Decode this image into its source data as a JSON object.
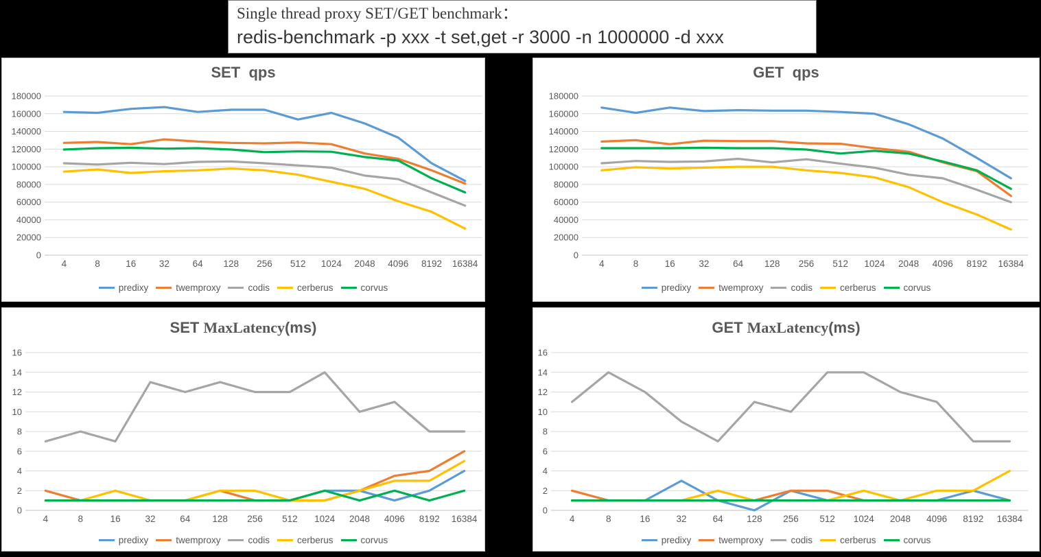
{
  "header": {
    "line1": "Single thread proxy SET/GET benchmark：",
    "line2": "redis-benchmark -p xxx -t set,get -r 3000 -n 1000000 -d xxx"
  },
  "palette": {
    "predixy": "#5B9BD5",
    "twemproxy": "#ED7D31",
    "codis": "#A5A5A5",
    "cerberus": "#FFC000",
    "corvus": "#00B050"
  },
  "style_colors": {
    "axis_text": "#595959",
    "title_text": "#595959",
    "gridline": "#D9D9D9",
    "zero_line": "#BFBFBF",
    "panel_bg": "#FFFFFF",
    "page_bg": "#000000"
  },
  "legend_entries": [
    "predixy",
    "twemproxy",
    "codis",
    "cerberus",
    "corvus"
  ],
  "chart_data": [
    {
      "id": "set-qps",
      "type": "line",
      "title_parts": [
        {
          "text": "SET  qps",
          "serif": false
        }
      ],
      "categories": [
        "4",
        "8",
        "16",
        "32",
        "64",
        "128",
        "256",
        "512",
        "1024",
        "2048",
        "4096",
        "8192",
        "16384"
      ],
      "ylim": [
        0,
        180000
      ],
      "yticks": [
        0,
        20000,
        40000,
        60000,
        80000,
        100000,
        120000,
        140000,
        160000,
        180000
      ],
      "grid": true,
      "legend_position": "bottom",
      "series": [
        {
          "name": "predixy",
          "values": [
            162000,
            161000,
            165500,
            167500,
            162000,
            164500,
            164500,
            153500,
            161000,
            149000,
            133000,
            104000,
            84000
          ]
        },
        {
          "name": "twemproxy",
          "values": [
            127000,
            128000,
            125500,
            131000,
            128500,
            127000,
            126500,
            127500,
            125500,
            115000,
            109000,
            96000,
            81000
          ]
        },
        {
          "name": "codis",
          "values": [
            104000,
            102500,
            104500,
            103000,
            105500,
            106000,
            104000,
            101500,
            99000,
            90000,
            86000,
            71000,
            56000
          ]
        },
        {
          "name": "cerberus",
          "values": [
            94500,
            97000,
            93000,
            95000,
            96000,
            98000,
            96000,
            91000,
            83000,
            75000,
            61000,
            49000,
            30000
          ]
        },
        {
          "name": "corvus",
          "values": [
            119500,
            121000,
            121500,
            120500,
            121000,
            119500,
            116500,
            117500,
            117000,
            111000,
            107000,
            87000,
            71000
          ]
        }
      ]
    },
    {
      "id": "get-qps",
      "type": "line",
      "title_parts": [
        {
          "text": "GET  qps",
          "serif": false
        }
      ],
      "categories": [
        "4",
        "8",
        "16",
        "32",
        "64",
        "128",
        "256",
        "512",
        "1024",
        "2048",
        "4096",
        "8192",
        "16384"
      ],
      "ylim": [
        0,
        180000
      ],
      "yticks": [
        0,
        20000,
        40000,
        60000,
        80000,
        100000,
        120000,
        140000,
        160000,
        180000
      ],
      "grid": true,
      "legend_position": "bottom",
      "series": [
        {
          "name": "predixy",
          "values": [
            167000,
            161000,
            167000,
            163000,
            164000,
            163500,
            163500,
            162000,
            160000,
            148000,
            132000,
            110000,
            87000
          ]
        },
        {
          "name": "twemproxy",
          "values": [
            128500,
            130000,
            125500,
            129500,
            129000,
            129000,
            126500,
            126000,
            121000,
            117000,
            105000,
            95000,
            67000
          ]
        },
        {
          "name": "codis",
          "values": [
            104000,
            106500,
            105500,
            106000,
            109000,
            105000,
            108500,
            103500,
            99000,
            91000,
            87000,
            74000,
            60000
          ]
        },
        {
          "name": "cerberus",
          "values": [
            96000,
            99500,
            98000,
            99000,
            100000,
            100000,
            96000,
            93000,
            88000,
            77000,
            60000,
            46000,
            29000
          ]
        },
        {
          "name": "corvus",
          "values": [
            121000,
            121000,
            121000,
            121500,
            121000,
            121000,
            119500,
            115000,
            118000,
            115000,
            106000,
            96000,
            75000
          ]
        }
      ]
    },
    {
      "id": "set-maxlatency",
      "type": "line",
      "title_parts": [
        {
          "text": "SET ",
          "serif": false
        },
        {
          "text": "MaxLatency",
          "serif": true
        },
        {
          "text": "(ms)",
          "serif": false
        }
      ],
      "categories": [
        "4",
        "8",
        "16",
        "32",
        "64",
        "128",
        "256",
        "512",
        "1024",
        "2048",
        "4096",
        "8192",
        "16384"
      ],
      "ylim": [
        0,
        16
      ],
      "yticks": [
        0,
        2,
        4,
        6,
        8,
        10,
        12,
        14,
        16
      ],
      "grid": true,
      "legend_position": "bottom",
      "series": [
        {
          "name": "predixy",
          "values": [
            1,
            1,
            1,
            1,
            1,
            1,
            1,
            1,
            2,
            2,
            1,
            2,
            4
          ]
        },
        {
          "name": "twemproxy",
          "values": [
            2,
            1,
            1,
            1,
            1,
            2,
            1,
            1,
            1,
            2,
            3.5,
            4,
            6
          ]
        },
        {
          "name": "codis",
          "values": [
            7,
            8,
            7,
            13,
            12,
            13,
            12,
            12,
            14,
            10,
            11,
            8,
            8
          ]
        },
        {
          "name": "cerberus",
          "values": [
            1,
            1,
            2,
            1,
            1,
            2,
            2,
            1,
            1,
            2,
            3,
            3,
            5
          ]
        },
        {
          "name": "corvus",
          "values": [
            1,
            1,
            1,
            1,
            1,
            1,
            1,
            1,
            2,
            1,
            2,
            1,
            2
          ]
        }
      ]
    },
    {
      "id": "get-maxlatency",
      "type": "line",
      "title_parts": [
        {
          "text": "GET ",
          "serif": false
        },
        {
          "text": "MaxLatency",
          "serif": true
        },
        {
          "text": "(ms)",
          "serif": false
        }
      ],
      "categories": [
        "4",
        "8",
        "16",
        "32",
        "64",
        "128",
        "256",
        "512",
        "1024",
        "2048",
        "4096",
        "8192",
        "16384"
      ],
      "ylim": [
        0,
        16
      ],
      "yticks": [
        0,
        2,
        4,
        6,
        8,
        10,
        12,
        14,
        16
      ],
      "grid": true,
      "legend_position": "bottom",
      "series": [
        {
          "name": "predixy",
          "values": [
            1,
            1,
            1,
            3,
            1,
            0,
            2,
            1,
            1,
            1,
            1,
            2,
            1
          ]
        },
        {
          "name": "twemproxy",
          "values": [
            2,
            1,
            1,
            1,
            1,
            1,
            2,
            2,
            1,
            1,
            1,
            1,
            1
          ]
        },
        {
          "name": "codis",
          "values": [
            11,
            14,
            12,
            9,
            7,
            11,
            10,
            14,
            14,
            12,
            11,
            7,
            7
          ]
        },
        {
          "name": "cerberus",
          "values": [
            1,
            1,
            1,
            1,
            2,
            1,
            1,
            1,
            2,
            1,
            2,
            2,
            4
          ]
        },
        {
          "name": "corvus",
          "values": [
            1,
            1,
            1,
            1,
            1,
            1,
            1,
            1,
            1,
            1,
            1,
            1,
            1
          ]
        }
      ]
    }
  ]
}
